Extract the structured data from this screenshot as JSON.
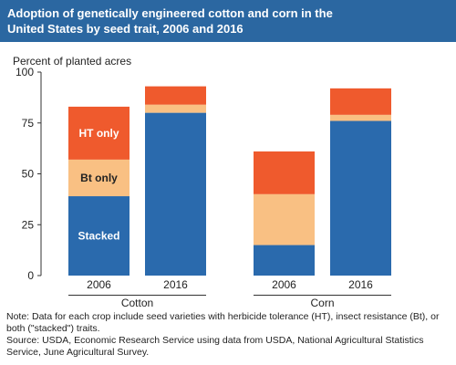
{
  "header": {
    "title_line1": "Adoption of genetically engineered cotton and corn in the",
    "title_line2": "United States by seed trait, 2006 and 2016"
  },
  "footer": {
    "note_line1": "Note: Data for each crop include seed varieties with herbicide tolerance (HT), insect resistance (Bt), or",
    "note_line2": "both (\"stacked\") traits.",
    "source_line1": "Source: USDA, Economic Research Service using data from USDA, National Agricultural Statistics",
    "source_line2": "Service, June Agricultural Survey."
  },
  "chart_data": {
    "type": "bar",
    "stacked": true,
    "ylabel": "Percent of planted acres",
    "ylim": [
      0,
      100
    ],
    "yticks": [
      0,
      25,
      50,
      75,
      100
    ],
    "grid": false,
    "groups": [
      {
        "name": "Cotton",
        "categories": [
          "2006",
          "2016"
        ]
      },
      {
        "name": "Corn",
        "categories": [
          "2006",
          "2016"
        ]
      }
    ],
    "series": [
      {
        "key": "stacked",
        "label": "Stacked",
        "color": "#2a6aad",
        "values": [
          39,
          80,
          15,
          76
        ]
      },
      {
        "key": "bt",
        "label": "Bt only",
        "color": "#f9c083",
        "values": [
          18,
          4,
          25,
          3
        ]
      },
      {
        "key": "ht",
        "label": "HT only",
        "color": "#ef5a2d",
        "values": [
          26,
          9,
          21,
          13
        ]
      }
    ],
    "in_bar_labels": {
      "bar_index": 0,
      "label_color_stacked": "#ffffff",
      "label_color_bt": "#222222",
      "label_color_ht": "#ffffff"
    }
  }
}
